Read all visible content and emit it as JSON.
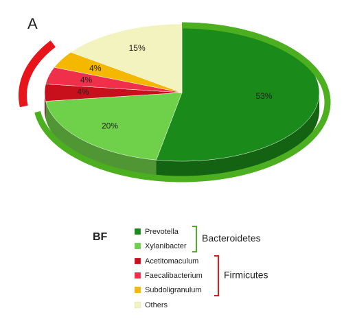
{
  "chart_data": {
    "type": "pie3d",
    "panel_label": "A",
    "legend_title": "BF",
    "categories": [
      "Prevotella",
      "Xylanibacter",
      "Acetitomaculum",
      "Faecalibacterium",
      "Subdoligranulum",
      "Others"
    ],
    "values": [
      53,
      20,
      4,
      4,
      4,
      15
    ],
    "value_labels": [
      "53%",
      "20%",
      "4%",
      "4%",
      "4%",
      "15%"
    ],
    "colors": [
      "#1a8a1a",
      "#6fd04a",
      "#c8101c",
      "#f0304a",
      "#f5b800",
      "#f3f3c0"
    ],
    "groups": [
      {
        "name": "Bacteroidetes",
        "color": "#4caf1f"
      },
      {
        "name": "Firmicutes",
        "color": "#e8141c"
      }
    ]
  }
}
